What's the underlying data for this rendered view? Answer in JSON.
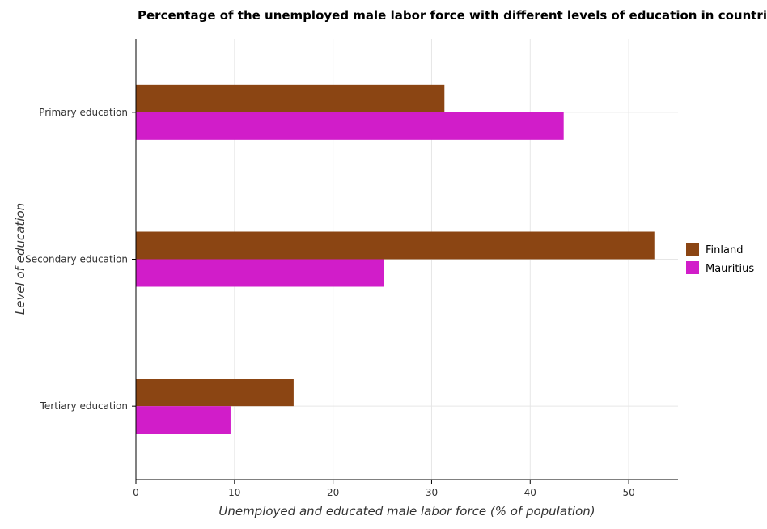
{
  "chart_data": {
    "type": "bar",
    "orientation": "horizontal",
    "title": "Percentage of the unemployed male labor force with different levels of education in countries",
    "xlabel": "Unemployed and educated male labor force (% of population)",
    "ylabel": "Level of education",
    "categories": [
      "Primary education",
      "Secondary education",
      "Tertiary education"
    ],
    "series": [
      {
        "name": "Finland",
        "color": "#8B4513",
        "values": [
          31.3,
          52.6,
          16.0
        ]
      },
      {
        "name": "Mauritius",
        "color": "#D11DC9",
        "values": [
          43.4,
          25.2,
          9.6
        ]
      }
    ],
    "xlim": [
      0,
      55
    ],
    "xticks": [
      0,
      10,
      20,
      30,
      40,
      50
    ],
    "grid": true,
    "legend_position": "right"
  }
}
